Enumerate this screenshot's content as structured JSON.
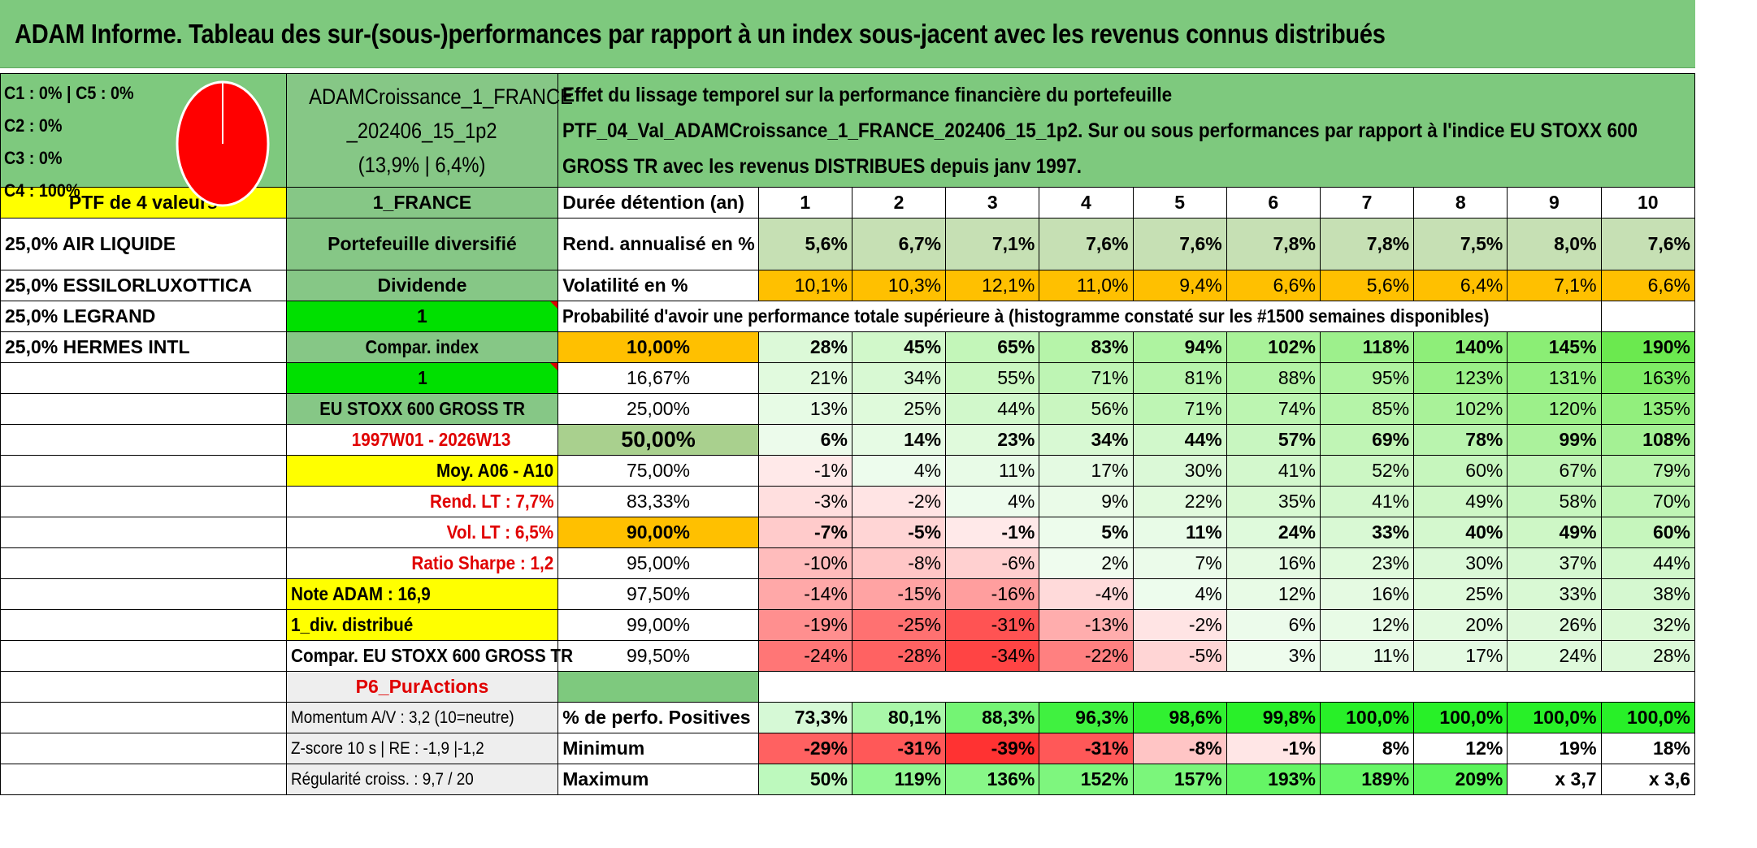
{
  "title": "ADAM Informe. Tableau des sur-(sous-)performances par rapport à un index sous-jacent avec les revenus connus distribués",
  "allocation": {
    "lines": [
      "C1 : 0% | C5 : 0%",
      "C2 : 0%",
      "C3 : 0%",
      "C4 : 100%"
    ],
    "pie_color": "#ff0000"
  },
  "portfolio": {
    "name_line1": "ADAMCroissance_1_FRANCE",
    "name_line2": "_202406_15_1p2",
    "name_line3": "(13,9% | 6,4%)",
    "description_line1": "Effet du lissage temporel sur la performance financière du portefeuille",
    "description_line2": "PTF_04_Val_ADAMCroissance_1_FRANCE_202406_15_1p2. Sur ou sous performances par rapport à l'indice EU STOXX 600",
    "description_line3": "GROSS TR avec les revenus DISTRIBUES depuis janv 1997."
  },
  "left": {
    "ptf_count": "PTF de 4 valeurs",
    "holdings": [
      "25,0% AIR LIQUIDE",
      "25,0% ESSILORLUXOTTICA",
      "25,0% LEGRAND",
      "25,0% HERMES INTL"
    ]
  },
  "mid": {
    "region": "1_FRANCE",
    "portfolio_type": "Portefeuille diversifié",
    "dividend": "Dividende",
    "dividend_value": "1",
    "compar_index": "Compar. index",
    "compar_value": "1",
    "index_name": "EU STOXX 600 GROSS TR",
    "period": "1997W01 - 2026W13",
    "moy": "Moy. A06 - A10",
    "rend_lt": "Rend. LT : 7,7%",
    "vol_lt": "Vol. LT : 6,5%",
    "sharpe": "Ratio Sharpe : 1,2",
    "note_adam": "Note ADAM : 16,9",
    "div_distribue": "1_div. distribué",
    "compar_full": "Compar. EU STOXX 600 GROSS TR",
    "p6": "P6_PurActions",
    "momentum": "Momentum A/V : 3,2 (10=neutre)",
    "zscore": "Z-score 10 s | RE : -1,9 |-1,2",
    "regularite": "Régularité croiss. : 9,7 / 20"
  },
  "table": {
    "duree_label": "Durée détention (an)",
    "years": [
      "1",
      "2",
      "3",
      "4",
      "5",
      "6",
      "7",
      "8",
      "9",
      "10"
    ],
    "rend_label": "Rend. annualisé en %",
    "rend": [
      "5,6%",
      "6,7%",
      "7,1%",
      "7,6%",
      "7,6%",
      "7,8%",
      "7,8%",
      "7,5%",
      "8,0%",
      "7,6%"
    ],
    "vol_label": "Volatilité en %",
    "vol": [
      "10,1%",
      "10,3%",
      "12,1%",
      "11,0%",
      "9,4%",
      "6,6%",
      "5,6%",
      "6,4%",
      "7,1%",
      "6,6%"
    ],
    "prob_label": "Probabilité d'avoir une performance totale supérieure à (histogramme constaté sur les #1500 semaines disponibles)",
    "prob_rows": [
      {
        "p": "10,00%",
        "v": [
          "28%",
          "45%",
          "65%",
          "83%",
          "94%",
          "102%",
          "118%",
          "140%",
          "145%",
          "190%"
        ]
      },
      {
        "p": "16,67%",
        "v": [
          "21%",
          "34%",
          "55%",
          "71%",
          "81%",
          "88%",
          "95%",
          "123%",
          "131%",
          "163%"
        ]
      },
      {
        "p": "25,00%",
        "v": [
          "13%",
          "25%",
          "44%",
          "56%",
          "71%",
          "74%",
          "85%",
          "102%",
          "120%",
          "135%"
        ]
      },
      {
        "p": "50,00%",
        "v": [
          "6%",
          "14%",
          "23%",
          "34%",
          "44%",
          "57%",
          "69%",
          "78%",
          "99%",
          "108%"
        ]
      },
      {
        "p": "75,00%",
        "v": [
          "-1%",
          "4%",
          "11%",
          "17%",
          "30%",
          "41%",
          "52%",
          "60%",
          "67%",
          "79%"
        ]
      },
      {
        "p": "83,33%",
        "v": [
          "-3%",
          "-2%",
          "4%",
          "9%",
          "22%",
          "35%",
          "41%",
          "49%",
          "58%",
          "70%"
        ]
      },
      {
        "p": "90,00%",
        "v": [
          "-7%",
          "-5%",
          "-1%",
          "5%",
          "11%",
          "24%",
          "33%",
          "40%",
          "49%",
          "60%"
        ]
      },
      {
        "p": "95,00%",
        "v": [
          "-10%",
          "-8%",
          "-6%",
          "2%",
          "7%",
          "16%",
          "23%",
          "30%",
          "37%",
          "44%"
        ]
      },
      {
        "p": "97,50%",
        "v": [
          "-14%",
          "-15%",
          "-16%",
          "-4%",
          "4%",
          "12%",
          "16%",
          "25%",
          "33%",
          "38%"
        ]
      },
      {
        "p": "99,00%",
        "v": [
          "-19%",
          "-25%",
          "-31%",
          "-13%",
          "-2%",
          "6%",
          "12%",
          "20%",
          "26%",
          "32%"
        ]
      },
      {
        "p": "99,50%",
        "v": [
          "-24%",
          "-28%",
          "-34%",
          "-22%",
          "-5%",
          "3%",
          "11%",
          "17%",
          "24%",
          "28%"
        ]
      }
    ],
    "pos_label": "% de perfo. Positives",
    "pos": [
      "73,3%",
      "80,1%",
      "88,3%",
      "96,3%",
      "98,6%",
      "99,8%",
      "100,0%",
      "100,0%",
      "100,0%",
      "100,0%"
    ],
    "min_label": "Minimum",
    "min": [
      "-29%",
      "-31%",
      "-39%",
      "-31%",
      "-8%",
      "-1%",
      "8%",
      "12%",
      "19%",
      "18%"
    ],
    "max_label": "Maximum",
    "max": [
      "50%",
      "119%",
      "136%",
      "152%",
      "157%",
      "193%",
      "189%",
      "209%",
      "x 3,7",
      "x 3,6"
    ]
  }
}
